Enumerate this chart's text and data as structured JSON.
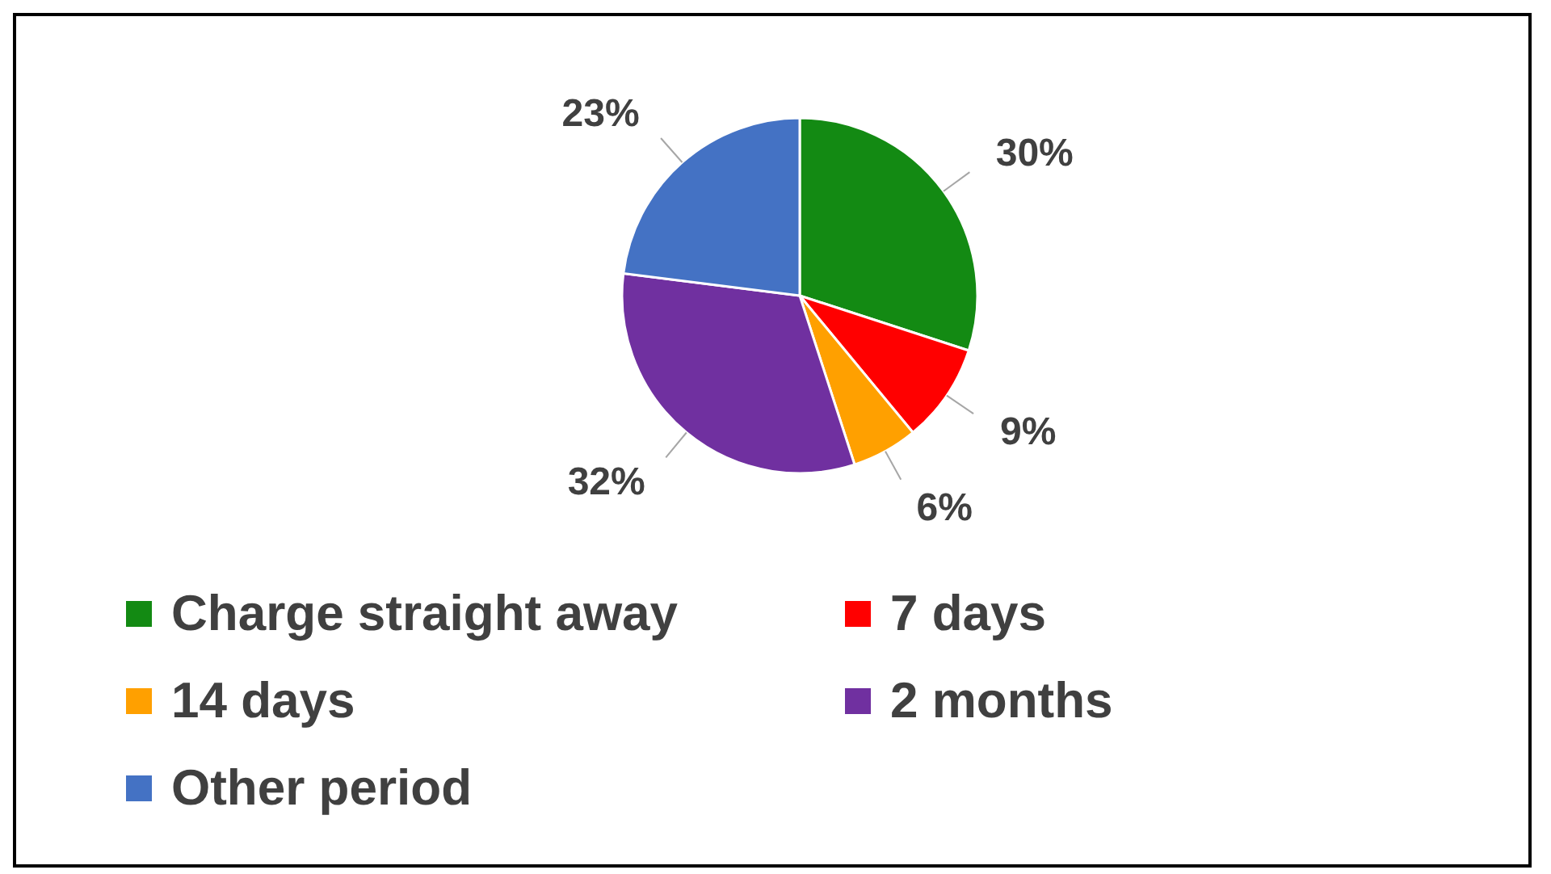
{
  "chart_data": {
    "type": "pie",
    "categories": [
      "Charge straight away",
      "7 days",
      "14 days",
      "2 months",
      "Other period"
    ],
    "values": [
      30,
      9,
      6,
      32,
      23
    ],
    "value_labels": [
      "30%",
      "9%",
      "6%",
      "32%",
      "23%"
    ],
    "colors": [
      "#138a13",
      "#ff0000",
      "#ffa000",
      "#7030a0",
      "#4472c4"
    ],
    "legend": "bottom"
  }
}
